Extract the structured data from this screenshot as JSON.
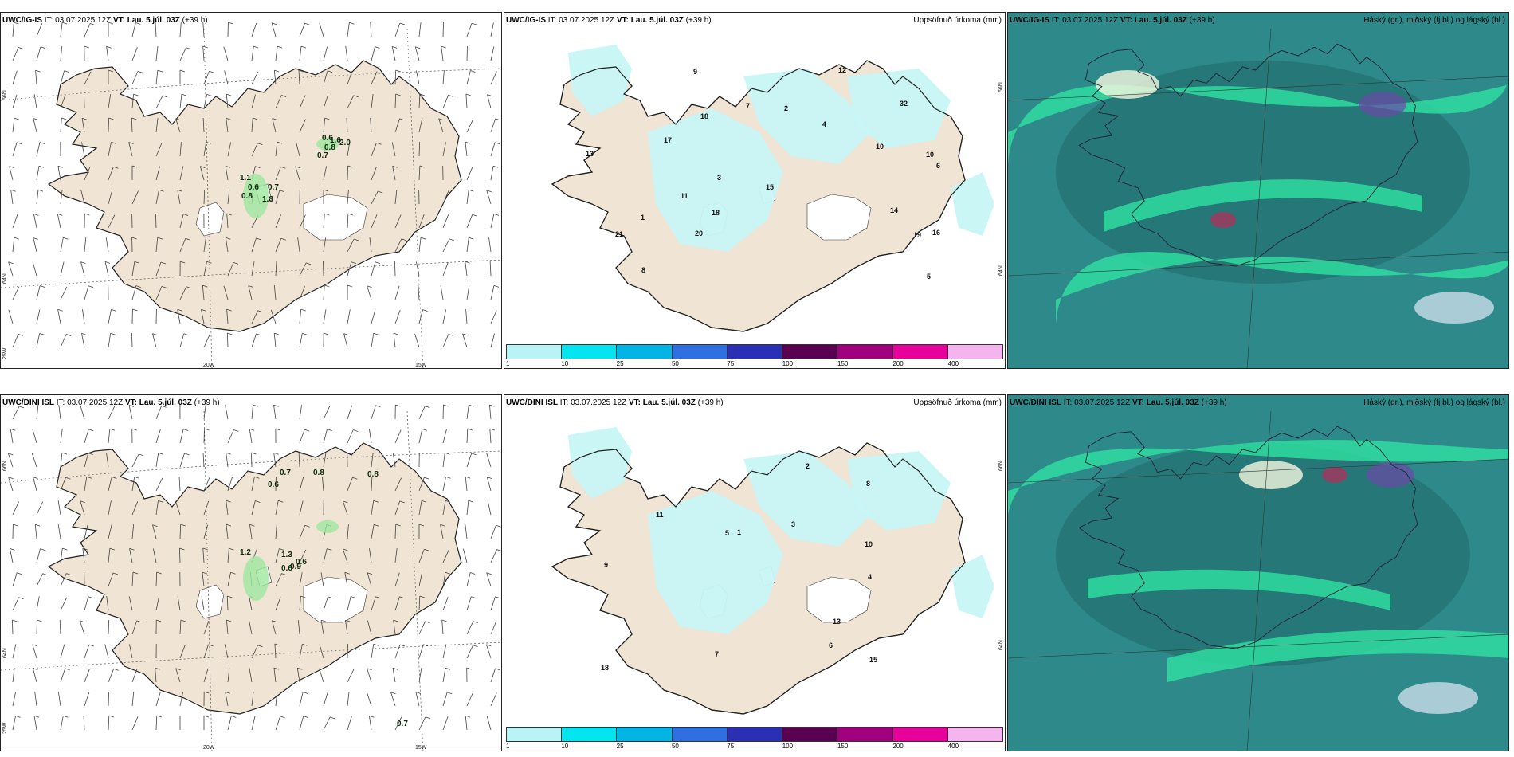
{
  "rows": [
    {
      "model": "UWC/IG-IS",
      "wind": {
        "it_label": "IT: 03.07.2025 12Z",
        "vt_label": "VT: Lau. 5.júl. 03Z",
        "lead": "(+39 h)",
        "lat_labels": [
          "66N",
          "64N",
          "25W"
        ],
        "lon_labels": [
          "20W",
          "15W"
        ],
        "values": [
          "1.1",
          "0.6",
          "0.8",
          "0.7",
          "1.8",
          "0.6",
          "1.6",
          "0.8",
          "2.0",
          "0.7"
        ]
      },
      "precip": {
        "it_label": "IT: 03.07.2025 12Z",
        "vt_label": "VT: Lau. 5.júl. 03Z",
        "lead": "(+39 h)",
        "title": "Uppsöfnuð úrkoma (mm)",
        "lat_labels": [
          "66N",
          "64N"
        ],
        "values": [
          "18",
          "10",
          "4",
          "6",
          "3",
          "16",
          "18",
          "12",
          "19",
          "32",
          "17",
          "14",
          "10",
          "20",
          "21",
          "15",
          "11",
          "13",
          "9",
          "7",
          "5",
          "2",
          "8",
          "1"
        ]
      },
      "cloud": {
        "it_label": "IT: 03.07.2025 12Z",
        "vt_label": "VT: Lau. 5.júl. 03Z",
        "lead": "(+39 h)",
        "title": "Háský (gr.), miðský (fj.bl.) og lágský (bl.)"
      }
    },
    {
      "model": "UWC/DINI ISL",
      "wind": {
        "it_label": "IT: 03.07.2025 12Z",
        "vt_label": "VT: Lau. 5.júl. 03Z",
        "lead": "(+39 h)",
        "lat_labels": [
          "66N",
          "64N",
          "25W"
        ],
        "lon_labels": [
          "20W",
          "15W"
        ],
        "values": [
          "0.7",
          "0.6",
          "0.8",
          "0.8",
          "1.2",
          "1.3",
          "0.6",
          "0.6",
          "0.9",
          "0.7"
        ]
      },
      "precip": {
        "it_label": "IT: 03.07.2025 12Z",
        "vt_label": "VT: Lau. 5.júl. 03Z",
        "lead": "(+39 h)",
        "title": "Uppsöfnuð úrkoma (mm)",
        "lat_labels": [
          "66N",
          "64N"
        ],
        "values": [
          "10",
          "13",
          "18",
          "15",
          "11",
          "7",
          "6",
          "5",
          "8",
          "4",
          "3",
          "2",
          "1",
          "9"
        ]
      },
      "cloud": {
        "it_label": "IT: 03.07.2025 12Z",
        "vt_label": "VT: Lau. 5.júl. 03Z",
        "lead": "(+39 h)",
        "title": "Háský (gr.), miðský (fj.bl.) og lágský (bl.)"
      }
    }
  ],
  "legend": {
    "ticks": [
      "1",
      "10",
      "25",
      "50",
      "75",
      "100",
      "150",
      "200",
      "400"
    ],
    "colors": [
      "#b8f4f6",
      "#00e5ee",
      "#00b4e6",
      "#2f6fe0",
      "#2b2fb6",
      "#5a0050",
      "#a0007e",
      "#e8009a",
      "#f4b4ee"
    ]
  },
  "colors": {
    "land": "#f0e4d4",
    "precip_light": "#c8f6f6",
    "wind_green": "#9ee79e",
    "cloud_sea": "#2e8a8a",
    "cloud_band": "#2fdca0",
    "cloud_dark": "#226a6a"
  }
}
